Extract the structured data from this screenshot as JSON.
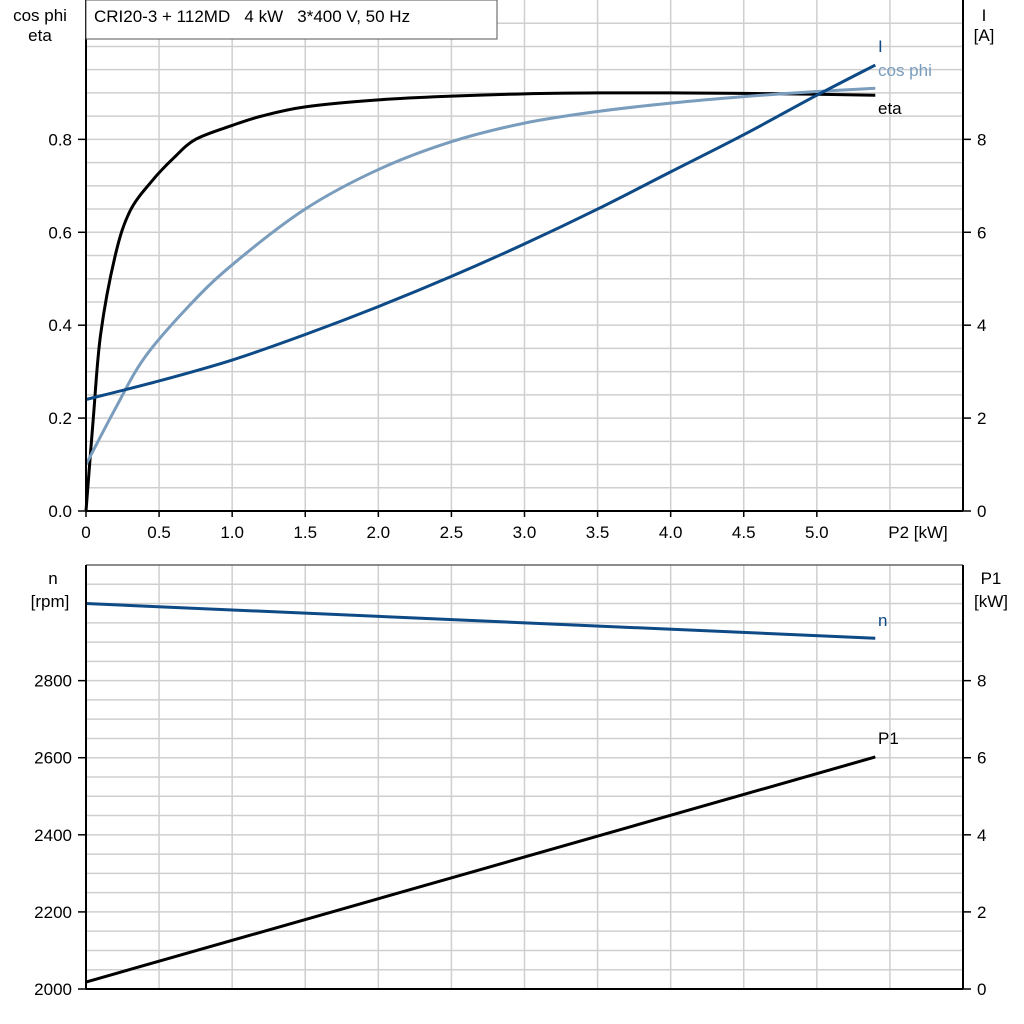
{
  "chart_data": [
    {
      "type": "line",
      "title": "CRI20-3 + 112MD   4 kW   3*400 V, 50 Hz",
      "xlabel": "P2 [kW]",
      "ylabel_left": [
        "cos phi",
        "eta"
      ],
      "ylabel_right": [
        "I",
        "[A]"
      ],
      "xlim": [
        0,
        6
      ],
      "ylim_left": [
        0,
        1.1
      ],
      "ylim_right": [
        0,
        11
      ],
      "x_ticks": [
        "0",
        "0.5",
        "1.0",
        "1.5",
        "2.0",
        "2.5",
        "3.0",
        "3.5",
        "4.0",
        "4.5",
        "5.0"
      ],
      "y_ticks_left": [
        "0.0",
        "0.2",
        "0.4",
        "0.6",
        "0.8"
      ],
      "y_ticks_right": [
        "0",
        "2",
        "4",
        "6",
        "8"
      ],
      "grid": true,
      "series": [
        {
          "name": "eta",
          "axis": "left",
          "color": "#000000",
          "x": [
            0,
            0.05,
            0.1,
            0.2,
            0.3,
            0.45,
            0.6,
            0.75,
            1.0,
            1.2,
            1.5,
            2.0,
            2.5,
            3.0,
            3.5,
            4.0,
            4.5,
            5.0,
            5.4
          ],
          "y": [
            0,
            0.2,
            0.38,
            0.55,
            0.645,
            0.71,
            0.76,
            0.8,
            0.83,
            0.85,
            0.87,
            0.885,
            0.893,
            0.898,
            0.9,
            0.9,
            0.899,
            0.897,
            0.895
          ]
        },
        {
          "name": "cos phi",
          "axis": "left",
          "color": "#7a9cbd",
          "x": [
            0,
            0.2,
            0.4,
            0.7,
            1.0,
            1.5,
            2.0,
            2.5,
            3.0,
            3.5,
            4.0,
            4.5,
            5.0,
            5.4
          ],
          "y": [
            0.1,
            0.22,
            0.33,
            0.44,
            0.53,
            0.65,
            0.735,
            0.795,
            0.835,
            0.86,
            0.878,
            0.892,
            0.903,
            0.91
          ]
        },
        {
          "name": "I",
          "axis": "right",
          "color": "#0d4a86",
          "x": [
            0,
            0.5,
            1.0,
            1.5,
            2.0,
            2.5,
            3.0,
            3.5,
            4.0,
            4.5,
            5.0,
            5.4
          ],
          "y": [
            2.4,
            2.8,
            3.25,
            3.8,
            4.4,
            5.05,
            5.75,
            6.5,
            7.3,
            8.1,
            8.95,
            9.6
          ]
        }
      ]
    },
    {
      "type": "line",
      "xlim": [
        0,
        6
      ],
      "ylabel_left": [
        "n",
        "[rpm]"
      ],
      "ylabel_right": [
        "P1",
        "[kW]"
      ],
      "ylim_left": [
        2000,
        3100
      ],
      "ylim_right": [
        0,
        11
      ],
      "y_ticks_left": [
        "2000",
        "2200",
        "2400",
        "2600",
        "2800"
      ],
      "y_ticks_right": [
        "0",
        "2",
        "4",
        "6",
        "8"
      ],
      "grid": true,
      "series": [
        {
          "name": "n",
          "axis": "left",
          "color": "#0d4a86",
          "x": [
            0,
            5.4
          ],
          "y": [
            3000,
            2910
          ]
        },
        {
          "name": "P1",
          "axis": "right",
          "color": "#000000",
          "x": [
            0,
            5.4
          ],
          "y": [
            0.18,
            6.02
          ]
        }
      ]
    }
  ]
}
